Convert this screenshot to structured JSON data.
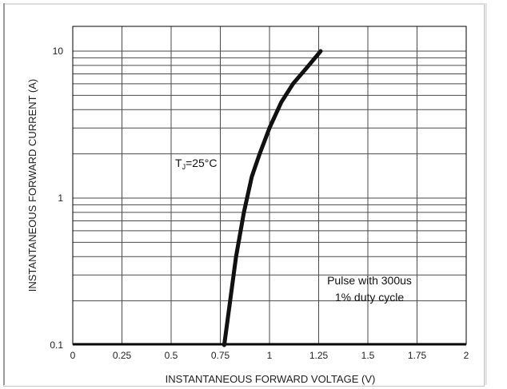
{
  "chart_data": {
    "type": "line",
    "xlabel": "INSTANTANEOUS FORWARD VOLTAGE (V)",
    "ylabel": "INSTANTANEOUS FORWARD CURRENT (A)",
    "xlim": [
      0,
      2
    ],
    "ylim": [
      0.1,
      20
    ],
    "yscale": "log",
    "grid": true,
    "x_ticks": [
      "0",
      "0.25",
      "0.5",
      "0.75",
      "1",
      "1.25",
      "1.5",
      "1.75",
      "2"
    ],
    "y_ticks": [
      "10",
      "1",
      "0.1"
    ],
    "x_tick_values": [
      0,
      0.25,
      0.5,
      0.75,
      1,
      1.25,
      1.5,
      1.75,
      2
    ],
    "y_tick_values": [
      10,
      1,
      0.1
    ],
    "annotations": {
      "temp_T": "T",
      "temp_sub": "J",
      "temp_rest": "=25°C",
      "pulse_line1": "Pulse with 300us",
      "pulse_line2": "1% duty cycle"
    },
    "series": [
      {
        "x": [
          0.77,
          0.8,
          0.83,
          0.87,
          0.91,
          0.95,
          1.0,
          1.06,
          1.12,
          1.2,
          1.26
        ],
        "y": [
          0.1,
          0.2,
          0.4,
          0.8,
          1.4,
          2.0,
          3.0,
          4.5,
          6.0,
          8.0,
          10.0
        ]
      }
    ],
    "colors": {
      "line": "#111111",
      "grid": "#4a4a4a",
      "axis": "#000000"
    }
  }
}
